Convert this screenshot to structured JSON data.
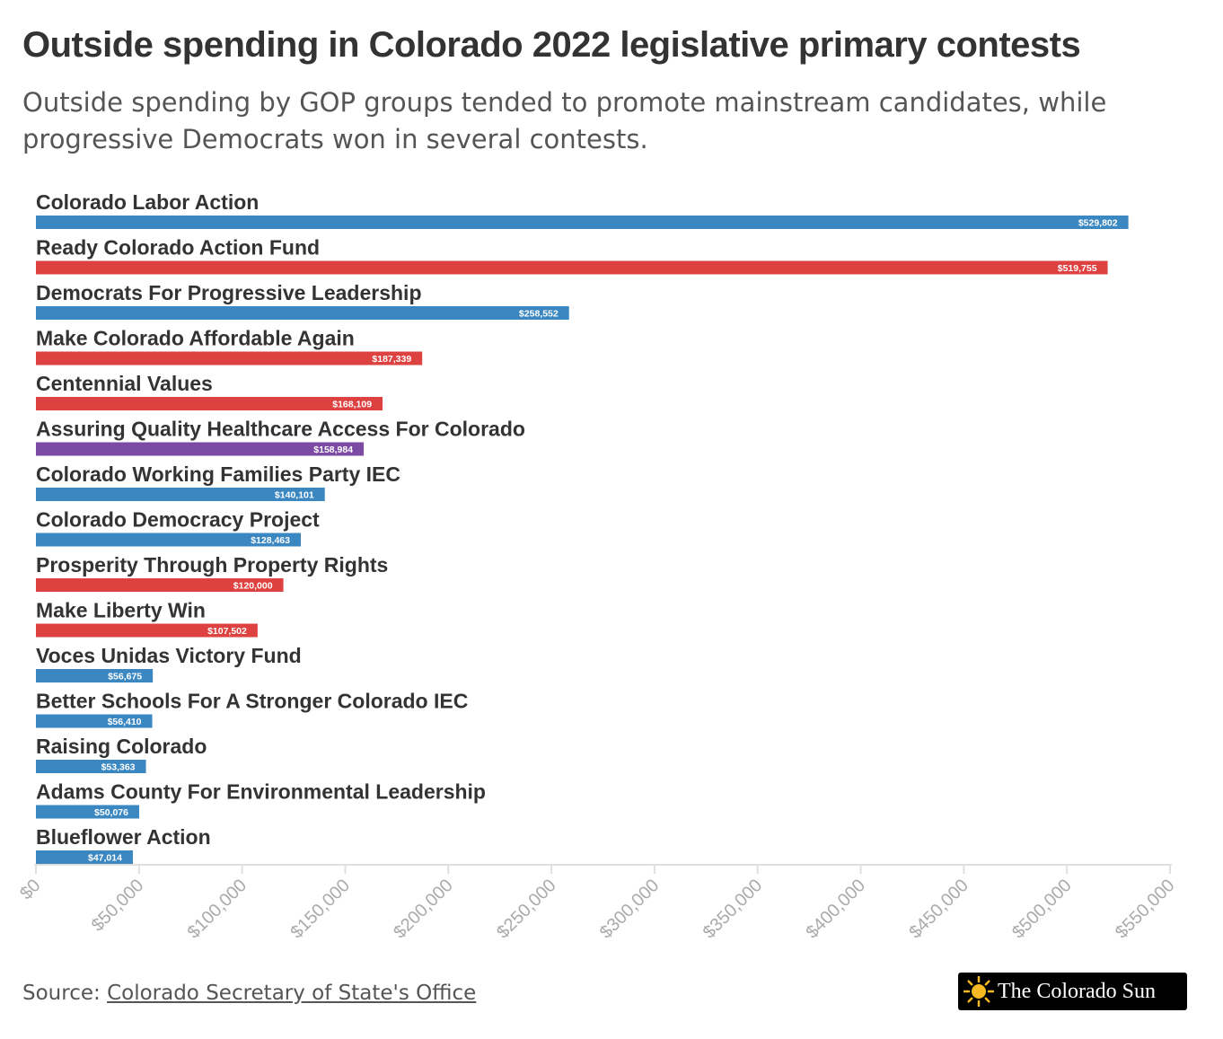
{
  "title": "Outside spending in Colorado 2022 legislative primary contests",
  "subtitle": "Outside spending by GOP groups tended to promote mainstream candidates, while progressive Democrats won in several contests.",
  "source": {
    "prefix": "Source: ",
    "link_text": "Colorado Secretary of State's Office"
  },
  "logo": {
    "text": "The Colorado Sun",
    "icon": "sun-icon"
  },
  "colors": {
    "democrat": "#3a87c1",
    "republican": "#dd4140",
    "bipartisan": "#7b4aa3",
    "axis": "#e0e0e0",
    "tick_label": "#aaaaaa"
  },
  "chart_data": {
    "type": "bar",
    "orientation": "horizontal",
    "title": "Outside spending in Colorado 2022 legislative primary contests",
    "xlim": [
      0,
      550000
    ],
    "x_ticks": [
      0,
      50000,
      100000,
      150000,
      200000,
      250000,
      300000,
      350000,
      400000,
      450000,
      500000,
      550000
    ],
    "x_tick_labels": [
      "$0",
      "$50,000",
      "$100,000",
      "$150,000",
      "$200,000",
      "$250,000",
      "$300,000",
      "$350,000",
      "$400,000",
      "$450,000",
      "$500,000",
      "$550,000"
    ],
    "categories": [
      "Colorado Labor Action",
      "Ready Colorado Action Fund",
      "Democrats For Progressive Leadership",
      "Make Colorado Affordable Again",
      "Centennial Values",
      "Assuring Quality Healthcare Access For Colorado",
      "Colorado Working Families Party IEC",
      "Colorado Democracy Project",
      "Prosperity Through Property Rights",
      "Make Liberty Win",
      "Voces Unidas Victory Fund",
      "Better Schools For A Stronger Colorado IEC",
      "Raising Colorado",
      "Adams County For Environmental Leadership",
      "Blueflower Action"
    ],
    "values": [
      529802,
      519755,
      258552,
      187339,
      168109,
      158984,
      140101,
      128463,
      120000,
      107502,
      56675,
      56410,
      53363,
      50076,
      47014
    ],
    "value_labels": [
      "$529,802",
      "$519,755",
      "$258,552",
      "$187,339",
      "$168,109",
      "$158,984",
      "$140,101",
      "$128,463",
      "$120,000",
      "$107,502",
      "$56,675",
      "$56,410",
      "$53,363",
      "$50,076",
      "$47,014"
    ],
    "bar_colors": [
      "#3a87c1",
      "#dd4140",
      "#3a87c1",
      "#dd4140",
      "#dd4140",
      "#7b4aa3",
      "#3a87c1",
      "#3a87c1",
      "#dd4140",
      "#dd4140",
      "#3a87c1",
      "#3a87c1",
      "#3a87c1",
      "#3a87c1",
      "#3a87c1"
    ],
    "grid": false,
    "legend": "none"
  }
}
